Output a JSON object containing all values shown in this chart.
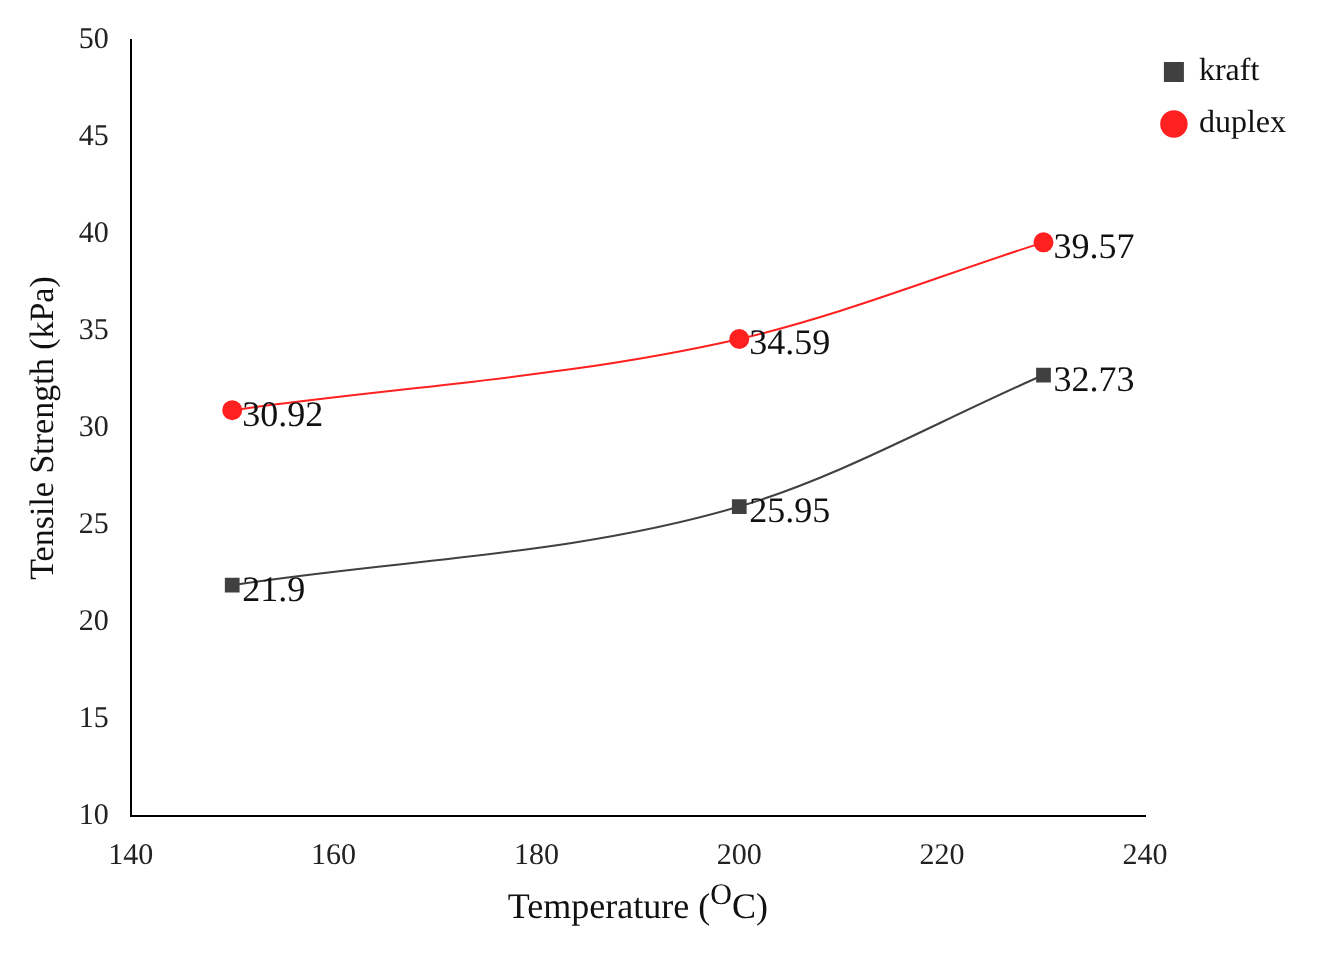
{
  "chart_data": {
    "type": "line",
    "xlabel": "Temperature ($^{O}$C)",
    "ylabel": "Tensile Strength (kPa)",
    "x": [
      150,
      200,
      230
    ],
    "series": [
      {
        "name": "kraft",
        "color": "#404040",
        "marker": "square",
        "values": [
          21.9,
          25.95,
          32.73
        ]
      },
      {
        "name": "duplex",
        "color": "#ff2020",
        "marker": "circle",
        "values": [
          30.92,
          34.59,
          39.57
        ]
      }
    ],
    "xlim": [
      140,
      240
    ],
    "xticks": [
      140,
      160,
      180,
      200,
      220,
      240
    ],
    "ylim": [
      10,
      50
    ],
    "yticks": [
      10,
      15,
      20,
      25,
      30,
      35,
      40,
      45,
      50
    ],
    "grid": false,
    "legend": "top right",
    "data_labels": true,
    "line_style": "solid"
  }
}
